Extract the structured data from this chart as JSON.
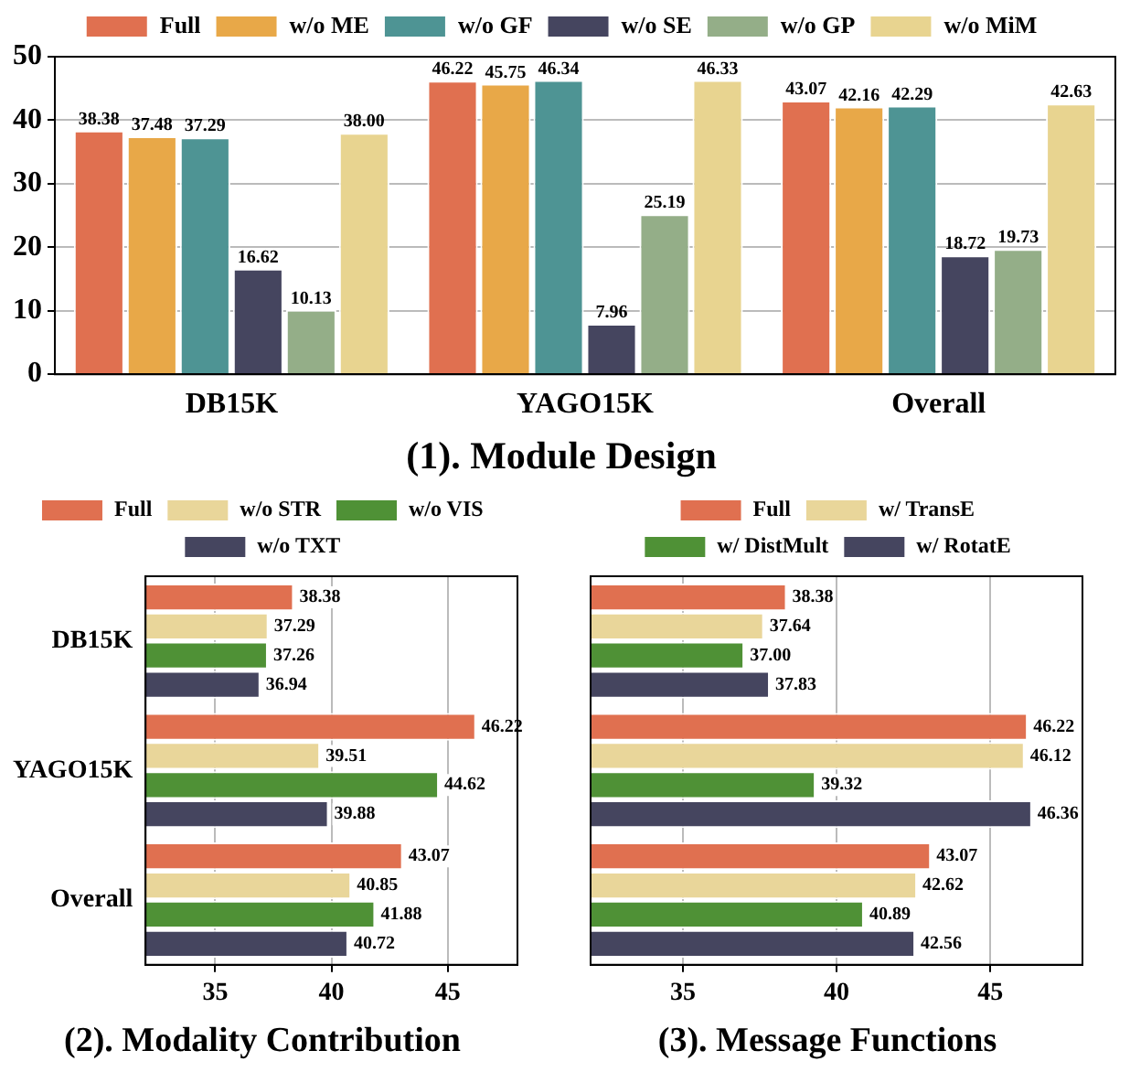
{
  "chart_data": [
    {
      "type": "bar",
      "title": "(1). Module Design",
      "categories": [
        "DB15K",
        "YAGO15K",
        "Overall"
      ],
      "ylim": [
        0,
        50
      ],
      "yticks": [
        0,
        10,
        20,
        30,
        40,
        50
      ],
      "grid": "y",
      "legend": "top",
      "series": [
        {
          "name": "Full",
          "color": "#e07050",
          "values": [
            38.38,
            46.22,
            43.07
          ],
          "value_labels": [
            "38.38",
            "46.22",
            "43.07"
          ]
        },
        {
          "name": "w/o ME",
          "color": "#e8a848",
          "values": [
            37.48,
            45.75,
            42.16
          ],
          "value_labels": [
            "37.48",
            "45.75",
            "42.16"
          ]
        },
        {
          "name": "w/o GF",
          "color": "#4e9494",
          "values": [
            37.29,
            46.34,
            42.29
          ],
          "value_labels": [
            "37.29",
            "46.34",
            "42.29"
          ]
        },
        {
          "name": "w/o SE",
          "color": "#45455f",
          "values": [
            16.62,
            7.96,
            18.72
          ],
          "value_labels": [
            "16.62",
            "7.96",
            "18.72"
          ]
        },
        {
          "name": "w/o GP",
          "color": "#94ae88",
          "values": [
            10.13,
            25.19,
            19.73
          ],
          "value_labels": [
            "10.13",
            "25.19",
            "19.73"
          ]
        },
        {
          "name": "w/o MiM",
          "color": "#e8d490",
          "values": [
            38.0,
            46.33,
            42.63
          ],
          "value_labels": [
            "38.00",
            "46.33",
            "42.63"
          ]
        }
      ]
    },
    {
      "type": "bar",
      "orientation": "horizontal",
      "title": "(2). Modality Contribution",
      "categories": [
        "DB15K",
        "YAGO15K",
        "Overall"
      ],
      "xlim": [
        32,
        48
      ],
      "xticks": [
        35,
        40,
        45
      ],
      "grid": "x",
      "legend": "top",
      "series": [
        {
          "name": "Full",
          "color": "#e07050",
          "values": [
            38.38,
            46.22,
            43.07
          ],
          "value_labels": [
            "38.38",
            "46.22",
            "43.07"
          ]
        },
        {
          "name": "w/o STR",
          "color": "#e9d69a",
          "values": [
            37.29,
            39.51,
            40.85
          ],
          "value_labels": [
            "37.29",
            "39.51",
            "40.85"
          ]
        },
        {
          "name": "w/o VIS",
          "color": "#4f9136",
          "values": [
            37.26,
            44.62,
            41.88
          ],
          "value_labels": [
            "37.26",
            "44.62",
            "41.88"
          ]
        },
        {
          "name": "w/o TXT",
          "color": "#45455f",
          "values": [
            36.94,
            39.88,
            40.72
          ],
          "value_labels": [
            "36.94",
            "39.88",
            "40.72"
          ]
        }
      ]
    },
    {
      "type": "bar",
      "orientation": "horizontal",
      "title": "(3). Message Functions",
      "categories": [
        null,
        null,
        null
      ],
      "xlim": [
        32,
        48
      ],
      "xticks": [
        35,
        40,
        45
      ],
      "grid": "x",
      "legend": "top",
      "series": [
        {
          "name": "Full",
          "color": "#e07050",
          "values": [
            38.38,
            46.22,
            43.07
          ],
          "value_labels": [
            "38.38",
            "46.22",
            "43.07"
          ]
        },
        {
          "name": "w/ TransE",
          "color": "#e9d69a",
          "values": [
            37.64,
            46.12,
            42.62
          ],
          "value_labels": [
            "37.64",
            "46.12",
            "42.62"
          ]
        },
        {
          "name": "w/ DistMult",
          "color": "#4f9136",
          "values": [
            37.0,
            39.32,
            40.89
          ],
          "value_labels": [
            "37.00",
            "39.32",
            "40.89"
          ]
        },
        {
          "name": "w/ RotatE",
          "color": "#45455f",
          "values": [
            37.83,
            46.36,
            42.56
          ],
          "value_labels": [
            "37.83",
            "46.36",
            "42.56"
          ]
        }
      ]
    }
  ]
}
